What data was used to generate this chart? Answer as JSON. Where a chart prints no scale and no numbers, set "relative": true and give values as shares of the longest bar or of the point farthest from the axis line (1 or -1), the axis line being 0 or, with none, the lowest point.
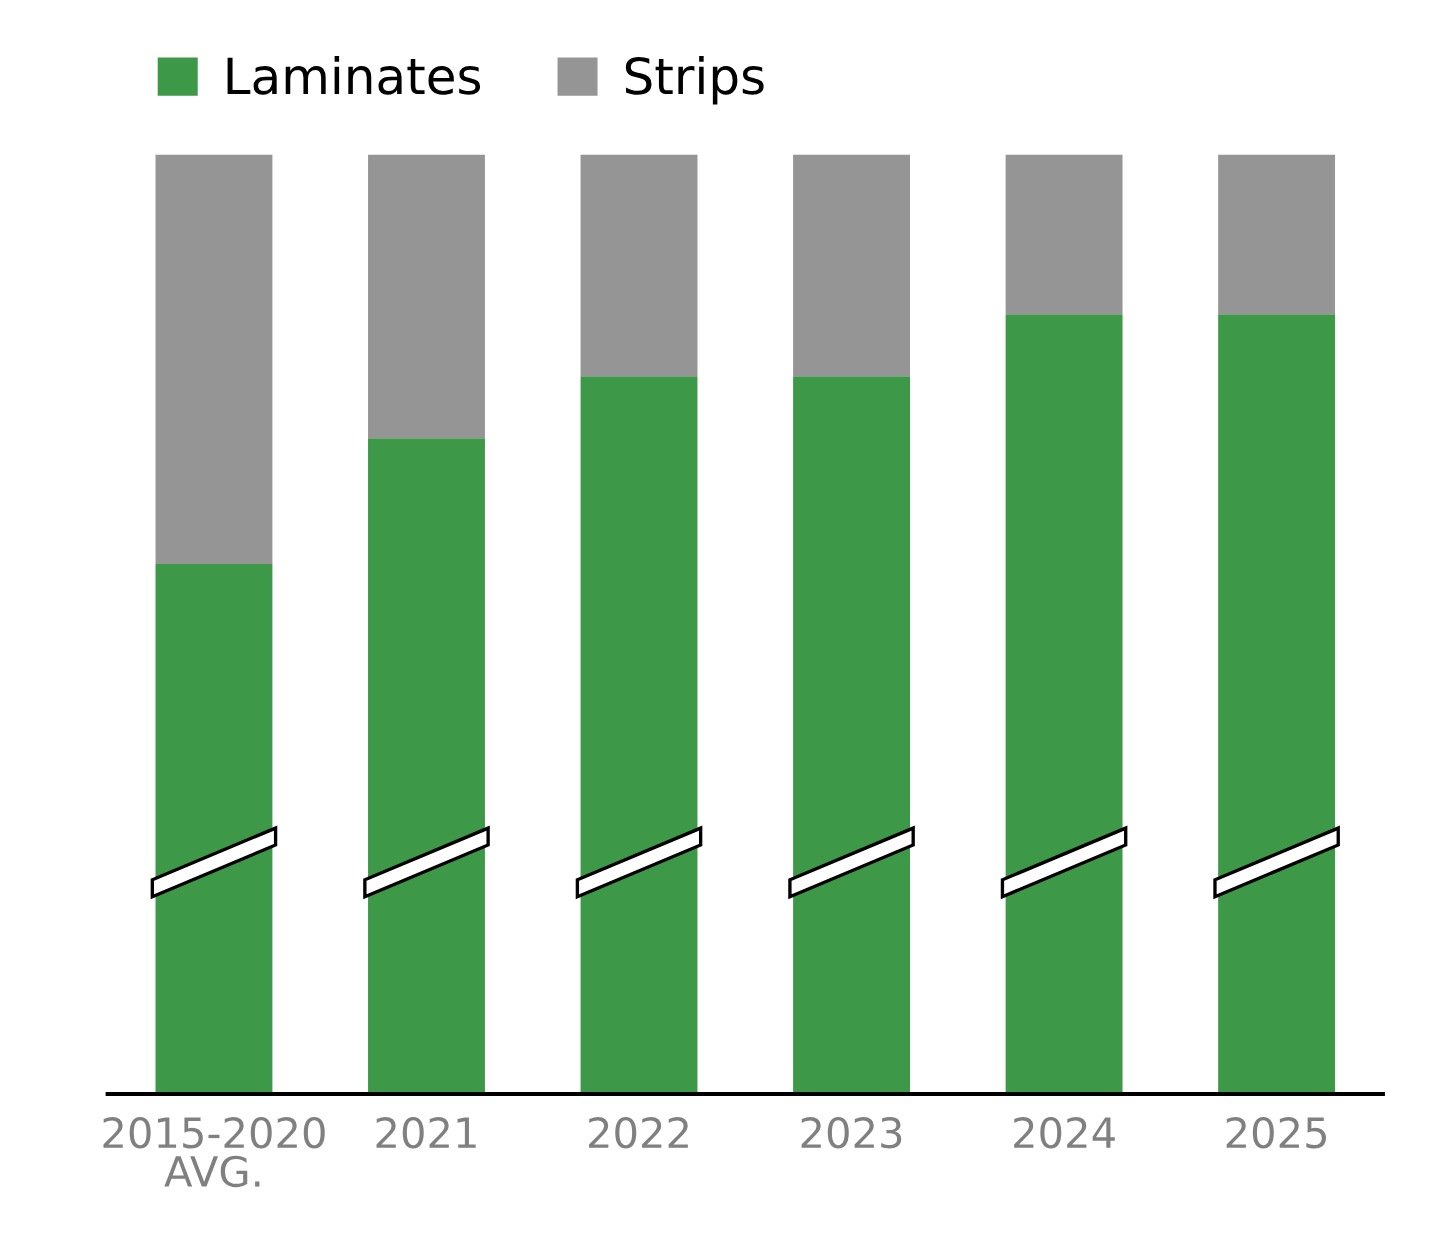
{
  "chart_data": {
    "type": "bar",
    "stacked": true,
    "relative": true,
    "categories": [
      "2015-2020\nAVG.",
      "2021",
      "2022",
      "2023",
      "2024",
      "2025"
    ],
    "series": [
      {
        "name": "Laminates",
        "color": "#3d9848",
        "values": [
          0.564,
          0.698,
          0.764,
          0.764,
          0.83,
          0.83
        ]
      },
      {
        "name": "Strips",
        "color": "#959595",
        "values": [
          0.436,
          0.302,
          0.236,
          0.236,
          0.17,
          0.17
        ]
      }
    ],
    "legend": "top left",
    "grid": false
  }
}
